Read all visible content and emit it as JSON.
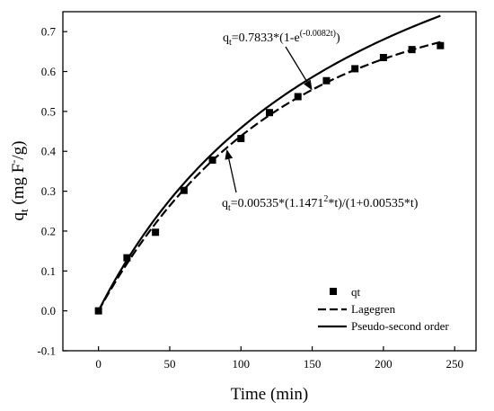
{
  "chart_data": {
    "type": "scatter",
    "xlabel": "Time (min)",
    "ylabel": "q_t (mg F⁻/g)",
    "ylabel_main": "q",
    "ylabel_sub": "t",
    "ylabel_rest": " (mg F",
    "ylabel_sup": "-",
    "ylabel_end": "/g)",
    "xlim": [
      -25,
      265
    ],
    "ylim": [
      -0.1,
      0.75
    ],
    "xticks": [
      0,
      50,
      100,
      150,
      200,
      250
    ],
    "yticks": [
      -0.1,
      0.0,
      0.1,
      0.2,
      0.3,
      0.4,
      0.5,
      0.6,
      0.7
    ],
    "xtick_labels": [
      "0",
      "50",
      "100",
      "150",
      "200",
      "250"
    ],
    "ytick_labels": [
      "-0.1",
      "0.0",
      "0.1",
      "0.2",
      "0.3",
      "0.4",
      "0.5",
      "0.6",
      "0.7"
    ],
    "series": [
      {
        "name": "qt",
        "kind": "scatter",
        "marker": "square",
        "x": [
          0,
          20,
          40,
          60,
          80,
          100,
          120,
          140,
          160,
          180,
          200,
          220,
          240
        ],
        "y": [
          0.0,
          0.133,
          0.197,
          0.302,
          0.378,
          0.432,
          0.497,
          0.537,
          0.577,
          0.607,
          0.635,
          0.655,
          0.665
        ]
      },
      {
        "name": "Lagegren",
        "kind": "line",
        "dash": "dashed",
        "model": "first-order",
        "qe": 0.7833,
        "k": 0.0082
      },
      {
        "name": "Pseudo-second order",
        "kind": "line",
        "dash": "solid",
        "model": "second-order",
        "k": 0.00535,
        "qe": 1.1471
      }
    ],
    "annotations": [
      {
        "id": "lagergren-eq",
        "base": "q",
        "sub": "t",
        "text_a": "=0.7833*(1-e",
        "sup": "(-0.0082t)",
        "text_b": ")",
        "arrow_to": [
          150,
          0.553
        ]
      },
      {
        "id": "pso-eq",
        "base": "q",
        "sub": "t",
        "text_a": "=0.00535*(1.1471",
        "sup": "2",
        "text_b": "*t)/(1+0.00535*t)",
        "arrow_to": [
          90,
          0.405
        ]
      }
    ],
    "legend": {
      "placement": "bottom-right"
    },
    "grid": false
  }
}
